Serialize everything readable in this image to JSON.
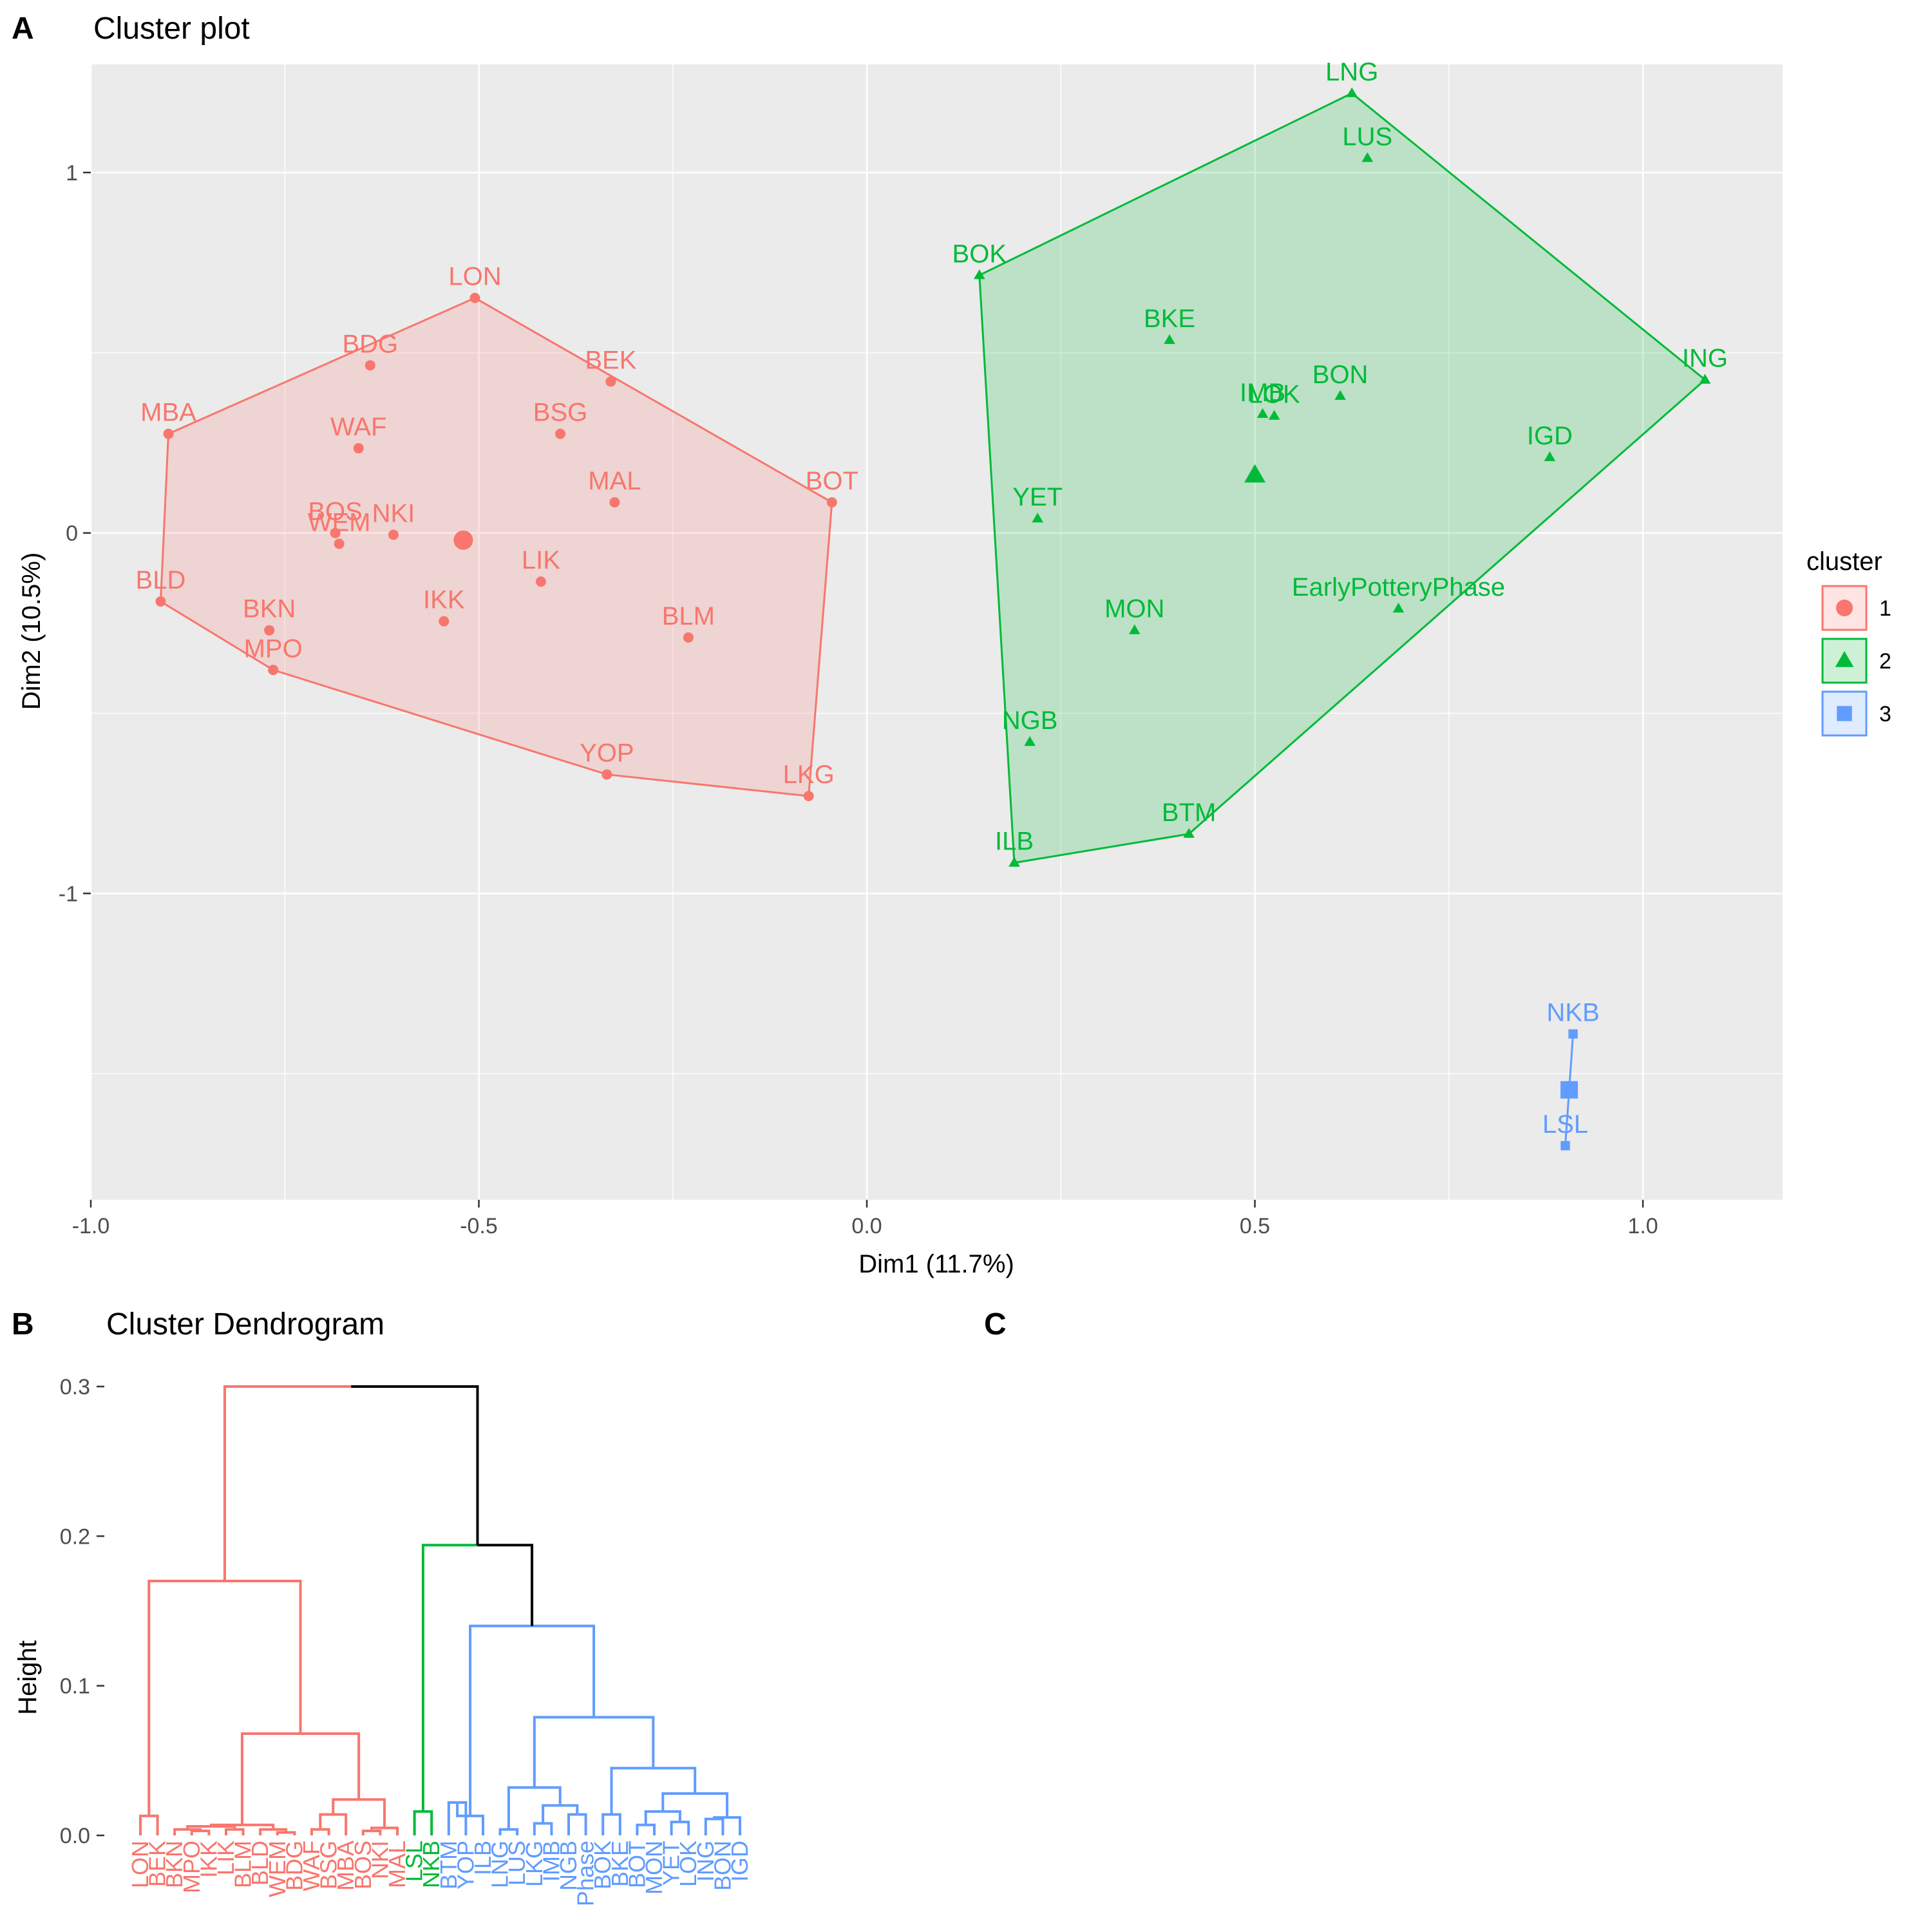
{
  "panels": {
    "a_letter": "A",
    "b_letter": "B",
    "c_letter": "C"
  },
  "chart_data": [
    {
      "type": "scatter",
      "title": "Cluster plot",
      "xlabel": "Dim1 (11.7%)",
      "ylabel": "Dim2 (10.5%)",
      "xlim": [
        -1.0,
        1.18
      ],
      "ylim": [
        -1.85,
        1.3
      ],
      "xticks": [
        -1.0,
        -0.5,
        0.0,
        0.5,
        1.0
      ],
      "xtick_labels": [
        "-1.0",
        "-0.5",
        "0.0",
        "0.5",
        "1.0"
      ],
      "yticks": [
        -1,
        0,
        1
      ],
      "ytick_labels": [
        "-1",
        "0",
        "1"
      ],
      "grid": true,
      "legend": {
        "title": "cluster",
        "position": "right",
        "entries": [
          "1",
          "2",
          "3"
        ]
      },
      "colors": {
        "c1": "#F8766D",
        "c2": "#00BA38",
        "c3": "#619CFF"
      },
      "series": [
        {
          "name": "1",
          "points": [
            {
              "label": "LON",
              "x": -0.505,
              "y": 0.652
            },
            {
              "label": "BDG",
              "x": -0.64,
              "y": 0.465
            },
            {
              "label": "BEK",
              "x": -0.33,
              "y": 0.42
            },
            {
              "label": "MBA",
              "x": -0.9,
              "y": 0.275
            },
            {
              "label": "WAF",
              "x": -0.655,
              "y": 0.235
            },
            {
              "label": "BSG",
              "x": -0.395,
              "y": 0.275
            },
            {
              "label": "MAL",
              "x": -0.325,
              "y": 0.085
            },
            {
              "label": "BOT",
              "x": -0.045,
              "y": 0.085
            },
            {
              "label": "BOS",
              "x": -0.685,
              "y": 0.0
            },
            {
              "label": "WEM",
              "x": -0.68,
              "y": -0.03
            },
            {
              "label": "NKI",
              "x": -0.61,
              "y": -0.005
            },
            {
              "label": "LIK",
              "x": -0.42,
              "y": -0.135
            },
            {
              "label": "BLD",
              "x": -0.91,
              "y": -0.19
            },
            {
              "label": "IKK",
              "x": -0.545,
              "y": -0.245
            },
            {
              "label": "BKN",
              "x": -0.77,
              "y": -0.27
            },
            {
              "label": "BLM",
              "x": -0.23,
              "y": -0.29
            },
            {
              "label": "MPO",
              "x": -0.765,
              "y": -0.38
            },
            {
              "label": "YOP",
              "x": -0.335,
              "y": -0.67
            },
            {
              "label": "LKG",
              "x": -0.075,
              "y": -0.73
            }
          ],
          "centroid": {
            "x": -0.52,
            "y": -0.02
          }
        },
        {
          "name": "2",
          "points": [
            {
              "label": "LNG",
              "x": 0.625,
              "y": 1.22
            },
            {
              "label": "LUS",
              "x": 0.645,
              "y": 1.04
            },
            {
              "label": "BOK",
              "x": 0.145,
              "y": 0.715
            },
            {
              "label": "BKE",
              "x": 0.39,
              "y": 0.535
            },
            {
              "label": "ING",
              "x": 1.08,
              "y": 0.425
            },
            {
              "label": "BON",
              "x": 0.61,
              "y": 0.38
            },
            {
              "label": "IMB",
              "x": 0.51,
              "y": 0.33
            },
            {
              "label": "LOK",
              "x": 0.525,
              "y": 0.325
            },
            {
              "label": "IGD",
              "x": 0.88,
              "y": 0.21
            },
            {
              "label": "YET",
              "x": 0.22,
              "y": 0.04
            },
            {
              "label": "EarlyPotteryPhase",
              "x": 0.685,
              "y": -0.21
            },
            {
              "label": "MON",
              "x": 0.345,
              "y": -0.27
            },
            {
              "label": "NGB",
              "x": 0.21,
              "y": -0.58
            },
            {
              "label": "BTM",
              "x": 0.415,
              "y": -0.835
            },
            {
              "label": "ILB",
              "x": 0.19,
              "y": -0.915
            }
          ],
          "centroid": {
            "x": 0.5,
            "y": 0.16
          }
        },
        {
          "name": "3",
          "points": [
            {
              "label": "NKB",
              "x": 0.91,
              "y": -1.39
            },
            {
              "label": "LSL",
              "x": 0.9,
              "y": -1.7
            }
          ],
          "centroid": {
            "x": 0.905,
            "y": -1.545
          }
        }
      ]
    },
    {
      "type": "dendrogram",
      "title": "Cluster Dendrogram",
      "ylabel": "Height",
      "ylim": [
        0,
        0.3
      ],
      "yticks": [
        0.0,
        0.1,
        0.2,
        0.3
      ],
      "ytick_labels": [
        "0.0",
        "0.1",
        "0.2",
        "0.3"
      ],
      "leaves": [
        {
          "label": "LON",
          "group": 1
        },
        {
          "label": "BEK",
          "group": 1
        },
        {
          "label": "BKN",
          "group": 1
        },
        {
          "label": "MPO",
          "group": 1
        },
        {
          "label": "IKK",
          "group": 1
        },
        {
          "label": "LIK",
          "group": 1
        },
        {
          "label": "BLM",
          "group": 1
        },
        {
          "label": "BLD",
          "group": 1
        },
        {
          "label": "WEM",
          "group": 1
        },
        {
          "label": "BDG",
          "group": 1
        },
        {
          "label": "WAF",
          "group": 1
        },
        {
          "label": "BSG",
          "group": 1
        },
        {
          "label": "MBA",
          "group": 1
        },
        {
          "label": "BOS",
          "group": 1
        },
        {
          "label": "NKI",
          "group": 1
        },
        {
          "label": "MAL",
          "group": 1
        },
        {
          "label": "LSL",
          "group": 2
        },
        {
          "label": "NKB",
          "group": 2
        },
        {
          "label": "BTM",
          "group": 3
        },
        {
          "label": "YOP",
          "group": 3
        },
        {
          "label": "ILB",
          "group": 3
        },
        {
          "label": "LNG",
          "group": 3
        },
        {
          "label": "LUS",
          "group": 3
        },
        {
          "label": "LKG",
          "group": 3
        },
        {
          "label": "IMB",
          "group": 3
        },
        {
          "label": "NGB",
          "group": 3
        },
        {
          "label": "Phase",
          "group": 3
        },
        {
          "label": "BOK",
          "group": 3
        },
        {
          "label": "BKE",
          "group": 3
        },
        {
          "label": "BOT",
          "group": 3
        },
        {
          "label": "MON",
          "group": 3
        },
        {
          "label": "YET",
          "group": 3
        },
        {
          "label": "LOK",
          "group": 3
        },
        {
          "label": "ING",
          "group": 3
        },
        {
          "label": "BON",
          "group": 3
        },
        {
          "label": "IGD",
          "group": 3
        }
      ],
      "merges": [
        [
          -1,
          -2,
          0.013
        ],
        [
          -4,
          -5,
          0.003
        ],
        [
          -3,
          2,
          0.004
        ],
        [
          -6,
          -7,
          0.004
        ],
        [
          3,
          4,
          0.006
        ],
        [
          -9,
          -10,
          0.002
        ],
        [
          -8,
          6,
          0.004
        ],
        [
          5,
          7,
          0.007
        ],
        [
          -11,
          -12,
          0.004
        ],
        [
          -13,
          9,
          0.014
        ],
        [
          -14,
          -15,
          0.003
        ],
        [
          11,
          -16,
          0.005
        ],
        [
          10,
          12,
          0.024
        ],
        [
          -17,
          -18,
          0.016
        ],
        [
          -19,
          -20,
          0.022
        ],
        [
          15,
          -21,
          0.013
        ],
        [
          -22,
          -23,
          0.004
        ],
        [
          -24,
          -25,
          0.008
        ],
        [
          -26,
          -27,
          0.014
        ],
        [
          18,
          19,
          0.02
        ],
        [
          17,
          20,
          0.032
        ],
        [
          -28,
          -29,
          0.014
        ],
        [
          -30,
          -31,
          0.007
        ],
        [
          -32,
          -33,
          0.009
        ],
        [
          23,
          24,
          0.016
        ],
        [
          -34,
          -35,
          0.011
        ],
        [
          -36,
          26,
          0.012
        ],
        [
          25,
          27,
          0.028
        ],
        [
          22,
          28,
          0.045
        ],
        [
          21,
          29,
          0.079
        ],
        [
          16,
          30,
          0.14
        ],
        [
          8,
          13,
          0.068
        ],
        [
          1,
          32,
          0.17
        ],
        [
          14,
          31,
          0.194
        ],
        [
          33,
          34,
          0.3
        ]
      ],
      "group_colors": {
        "1": "#F8766D",
        "2": "#00BA38",
        "3": "#619CFF",
        "root": "#000000"
      }
    }
  ]
}
